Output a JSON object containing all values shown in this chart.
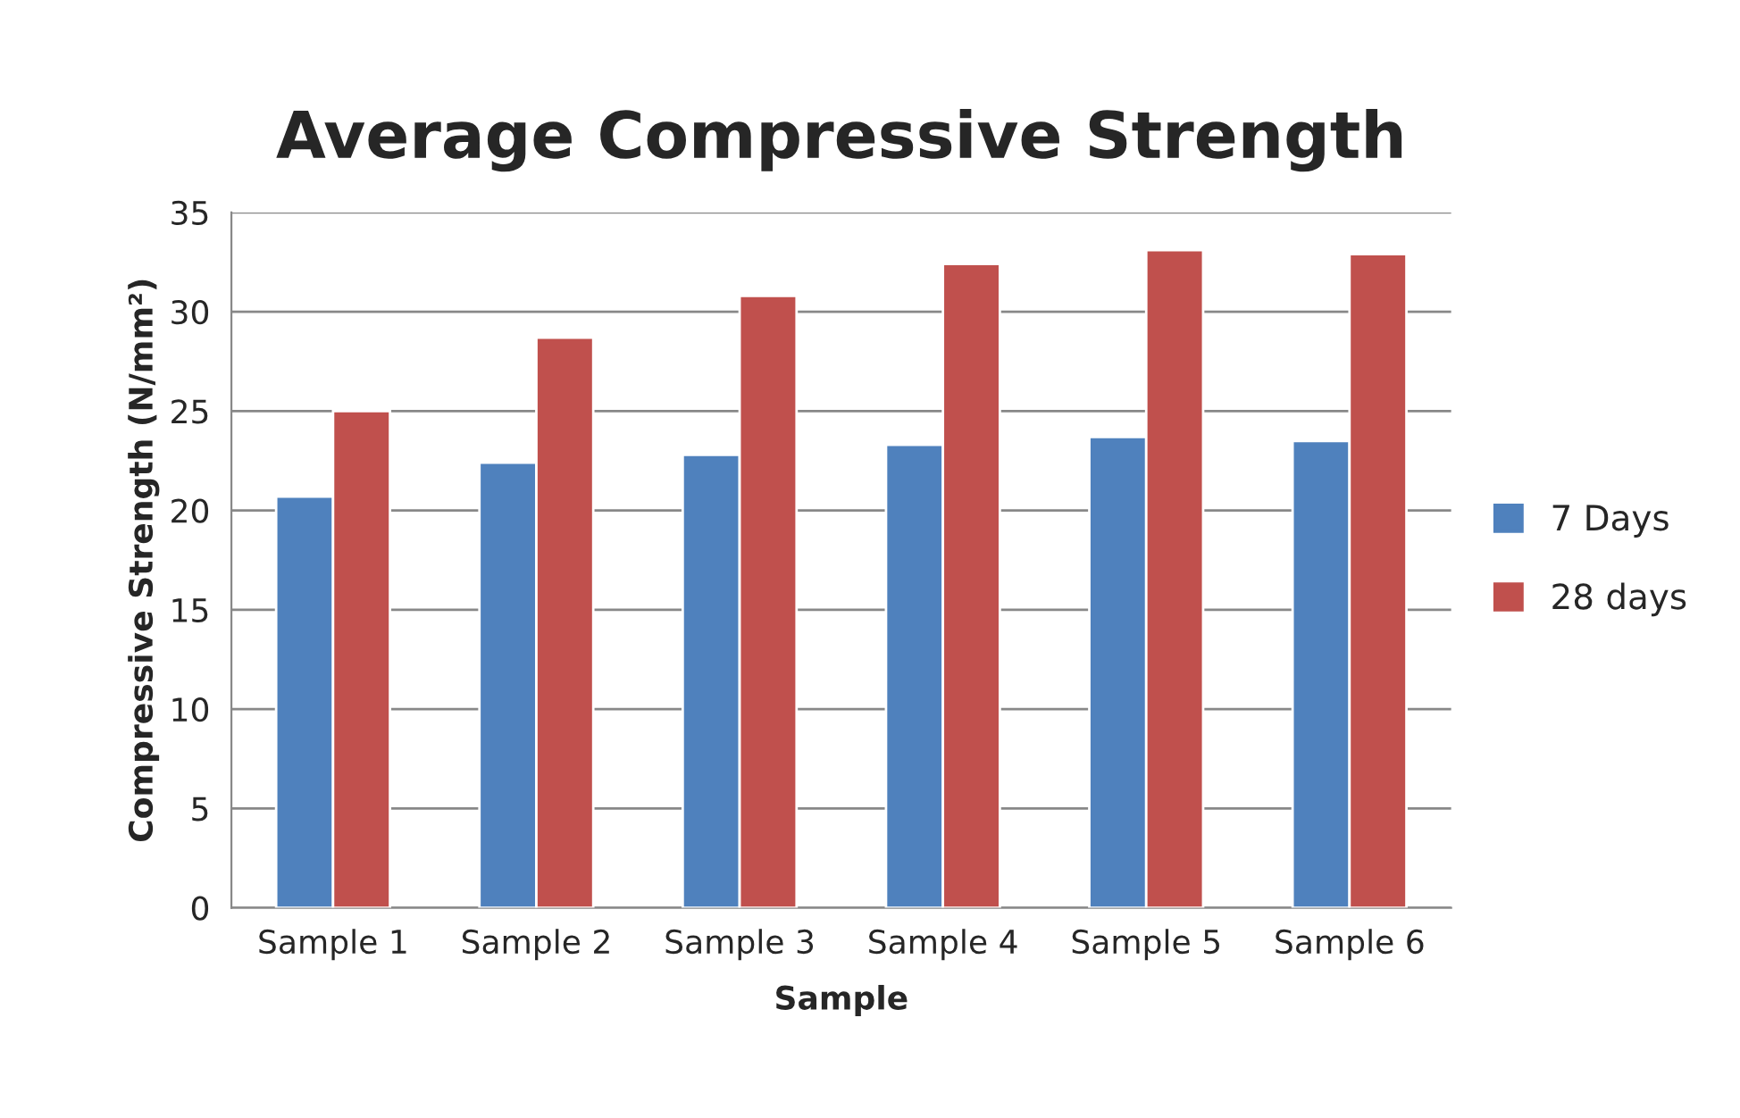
{
  "chart_data": {
    "type": "bar",
    "title": "Average Compressive Strength",
    "xlabel": "Sample",
    "ylabel": "Compressive Strength (N/mm²)",
    "categories": [
      "Sample 1",
      "Sample 2",
      "Sample 3",
      "Sample 4",
      "Sample 5",
      "Sample 6"
    ],
    "series": [
      {
        "name": "7 Days",
        "color": "#4f81bd",
        "values": [
          20.7,
          22.4,
          22.8,
          23.3,
          23.7,
          23.5
        ]
      },
      {
        "name": "28 days",
        "color": "#c0504d",
        "values": [
          25.0,
          28.7,
          30.8,
          32.4,
          33.1,
          32.9
        ]
      }
    ],
    "ylim": [
      0,
      35
    ],
    "yticks": [
      0,
      5,
      10,
      15,
      20,
      25,
      30,
      35
    ],
    "grid": "y",
    "legend": "right"
  }
}
